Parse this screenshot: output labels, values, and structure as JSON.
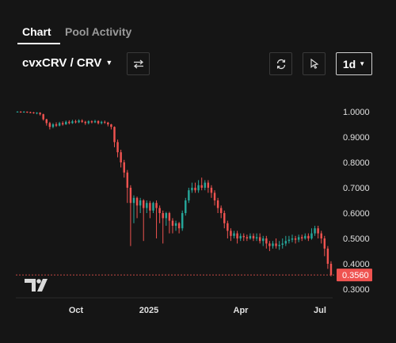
{
  "tabs": [
    {
      "label": "Chart",
      "active": true
    },
    {
      "label": "Pool Activity",
      "active": false
    }
  ],
  "pair": {
    "label": "cvxCRV / CRV"
  },
  "interval": {
    "label": "1d"
  },
  "icons": {
    "swap": "swap-arrows-icon",
    "refresh": "refresh-icon",
    "cursor": "cursor-icon",
    "logo": "tradingview-logo"
  },
  "colors": {
    "up": "#26a69a",
    "down": "#ef5350",
    "background": "#151515",
    "price_tag": "#ef5350"
  },
  "chart_data": {
    "type": "candlestick",
    "y_ticks": [
      "1.0000",
      "0.9000",
      "0.8000",
      "0.7000",
      "0.6000",
      "0.5000",
      "0.4000",
      "0.3000"
    ],
    "y_tick_values": [
      1.0,
      0.9,
      0.8,
      0.7,
      0.6,
      0.5,
      0.4,
      0.3
    ],
    "ylim": [
      0.3,
      1.0
    ],
    "x_ticks": [
      "Oct",
      "2025",
      "Apr",
      "Jul"
    ],
    "x_tick_values": [
      0.19,
      0.42,
      0.71,
      0.96
    ],
    "last_price": "0.3560",
    "last_price_value": 0.356,
    "candles": [
      [
        1.0,
        1.0,
        1.002,
        0.998
      ],
      [
        1.0,
        0.998,
        1.002,
        0.996
      ],
      [
        0.998,
        1.0,
        1.002,
        0.996
      ],
      [
        1.0,
        0.998,
        1.001,
        0.995
      ],
      [
        0.998,
        0.997,
        1.0,
        0.994
      ],
      [
        0.997,
        0.995,
        0.999,
        0.992
      ],
      [
        0.995,
        0.996,
        0.998,
        0.99
      ],
      [
        0.996,
        0.99,
        0.998,
        0.985
      ],
      [
        0.99,
        0.97,
        0.992,
        0.965
      ],
      [
        0.97,
        0.955,
        0.972,
        0.945
      ],
      [
        0.955,
        0.94,
        0.96,
        0.93
      ],
      [
        0.94,
        0.95,
        0.955,
        0.935
      ],
      [
        0.95,
        0.945,
        0.958,
        0.94
      ],
      [
        0.945,
        0.955,
        0.96,
        0.942
      ],
      [
        0.955,
        0.95,
        0.962,
        0.945
      ],
      [
        0.95,
        0.96,
        0.965,
        0.948
      ],
      [
        0.96,
        0.955,
        0.966,
        0.95
      ],
      [
        0.955,
        0.962,
        0.968,
        0.952
      ],
      [
        0.962,
        0.958,
        0.968,
        0.954
      ],
      [
        0.958,
        0.965,
        0.97,
        0.955
      ],
      [
        0.965,
        0.96,
        0.97,
        0.956
      ],
      [
        0.96,
        0.955,
        0.964,
        0.948
      ],
      [
        0.955,
        0.962,
        0.966,
        0.95
      ],
      [
        0.962,
        0.958,
        0.966,
        0.954
      ],
      [
        0.958,
        0.963,
        0.968,
        0.955
      ],
      [
        0.963,
        0.955,
        0.966,
        0.95
      ],
      [
        0.955,
        0.96,
        0.964,
        0.95
      ],
      [
        0.96,
        0.957,
        0.965,
        0.952
      ],
      [
        0.957,
        0.95,
        0.96,
        0.942
      ],
      [
        0.95,
        0.94,
        0.952,
        0.93
      ],
      [
        0.94,
        0.88,
        0.942,
        0.86
      ],
      [
        0.88,
        0.84,
        0.89,
        0.82
      ],
      [
        0.84,
        0.8,
        0.85,
        0.78
      ],
      [
        0.8,
        0.76,
        0.81,
        0.74
      ],
      [
        0.76,
        0.7,
        0.77,
        0.64
      ],
      [
        0.7,
        0.64,
        0.71,
        0.47
      ],
      [
        0.64,
        0.66,
        0.67,
        0.56
      ],
      [
        0.66,
        0.63,
        0.665,
        0.58
      ],
      [
        0.63,
        0.65,
        0.66,
        0.6
      ],
      [
        0.65,
        0.62,
        0.655,
        0.49
      ],
      [
        0.62,
        0.64,
        0.65,
        0.6
      ],
      [
        0.64,
        0.61,
        0.648,
        0.58
      ],
      [
        0.61,
        0.64,
        0.645,
        0.6
      ],
      [
        0.64,
        0.62,
        0.65,
        0.5
      ],
      [
        0.62,
        0.6,
        0.63,
        0.56
      ],
      [
        0.6,
        0.58,
        0.61,
        0.48
      ],
      [
        0.58,
        0.6,
        0.605,
        0.55
      ],
      [
        0.6,
        0.57,
        0.605,
        0.52
      ],
      [
        0.57,
        0.55,
        0.58,
        0.52
      ],
      [
        0.55,
        0.56,
        0.57,
        0.53
      ],
      [
        0.56,
        0.54,
        0.565,
        0.52
      ],
      [
        0.54,
        0.6,
        0.61,
        0.53
      ],
      [
        0.6,
        0.65,
        0.66,
        0.59
      ],
      [
        0.65,
        0.69,
        0.7,
        0.64
      ],
      [
        0.69,
        0.7,
        0.72,
        0.68
      ],
      [
        0.7,
        0.69,
        0.72,
        0.68
      ],
      [
        0.69,
        0.71,
        0.73,
        0.68
      ],
      [
        0.71,
        0.7,
        0.74,
        0.69
      ],
      [
        0.7,
        0.72,
        0.73,
        0.69
      ],
      [
        0.72,
        0.7,
        0.73,
        0.68
      ],
      [
        0.7,
        0.68,
        0.71,
        0.66
      ],
      [
        0.68,
        0.65,
        0.69,
        0.63
      ],
      [
        0.65,
        0.62,
        0.66,
        0.6
      ],
      [
        0.62,
        0.6,
        0.63,
        0.58
      ],
      [
        0.6,
        0.56,
        0.61,
        0.54
      ],
      [
        0.56,
        0.53,
        0.57,
        0.5
      ],
      [
        0.53,
        0.51,
        0.54,
        0.49
      ],
      [
        0.51,
        0.52,
        0.53,
        0.5
      ],
      [
        0.52,
        0.5,
        0.53,
        0.48
      ],
      [
        0.5,
        0.51,
        0.52,
        0.49
      ],
      [
        0.51,
        0.505,
        0.52,
        0.49
      ],
      [
        0.505,
        0.5,
        0.515,
        0.49
      ],
      [
        0.5,
        0.51,
        0.52,
        0.495
      ],
      [
        0.51,
        0.5,
        0.52,
        0.49
      ],
      [
        0.5,
        0.505,
        0.52,
        0.49
      ],
      [
        0.505,
        0.49,
        0.52,
        0.48
      ],
      [
        0.49,
        0.5,
        0.51,
        0.47
      ],
      [
        0.5,
        0.48,
        0.51,
        0.46
      ],
      [
        0.48,
        0.47,
        0.49,
        0.45
      ],
      [
        0.47,
        0.48,
        0.49,
        0.46
      ],
      [
        0.48,
        0.47,
        0.5,
        0.46
      ],
      [
        0.47,
        0.475,
        0.49,
        0.455
      ],
      [
        0.475,
        0.48,
        0.5,
        0.46
      ],
      [
        0.48,
        0.49,
        0.51,
        0.47
      ],
      [
        0.49,
        0.495,
        0.51,
        0.48
      ],
      [
        0.495,
        0.5,
        0.515,
        0.485
      ],
      [
        0.5,
        0.495,
        0.51,
        0.48
      ],
      [
        0.495,
        0.505,
        0.515,
        0.485
      ],
      [
        0.505,
        0.5,
        0.515,
        0.49
      ],
      [
        0.5,
        0.51,
        0.52,
        0.495
      ],
      [
        0.51,
        0.5,
        0.52,
        0.49
      ],
      [
        0.5,
        0.52,
        0.54,
        0.495
      ],
      [
        0.52,
        0.54,
        0.55,
        0.51
      ],
      [
        0.54,
        0.52,
        0.55,
        0.5
      ],
      [
        0.52,
        0.5,
        0.53,
        0.48
      ],
      [
        0.5,
        0.46,
        0.51,
        0.43
      ],
      [
        0.46,
        0.4,
        0.47,
        0.38
      ],
      [
        0.4,
        0.356,
        0.41,
        0.35
      ]
    ]
  }
}
